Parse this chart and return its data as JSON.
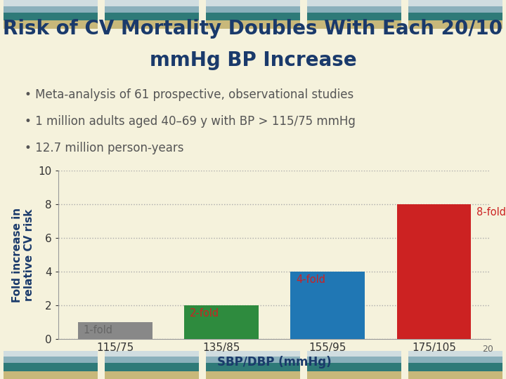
{
  "title_line1": "Risk of CV Mortality Doubles With Each 20/10",
  "title_line2": "mmHg BP Increase",
  "title_color": "#1a3a6b",
  "title_fontsize": 20,
  "bullets": [
    "Meta-analysis of 61 prospective, observational studies",
    "1 million adults aged 40–69 y with BP > 115/75 mmHg",
    "12.7 million person-years"
  ],
  "bullet_color": "#555555",
  "bullet_fontsize": 12,
  "categories": [
    "115/75",
    "135/85",
    "155/95",
    "175/105"
  ],
  "values": [
    1,
    2,
    4,
    8
  ],
  "bar_colors": [
    "#888888",
    "#2e8b3e",
    "#2077b4",
    "#cc2222"
  ],
  "bar_labels": [
    "1-fold",
    "2-fold",
    "4-fold",
    "8-fold"
  ],
  "bar_label_colors": [
    "#666666",
    "#cc2222",
    "#cc2222",
    "#cc2222"
  ],
  "xlabel": "SBP/DBP (mmHg)",
  "ylabel": "Fold increase in\nrelative CV risk",
  "xlabel_color": "#1a3a6b",
  "ylabel_color": "#1a3a6b",
  "xlabel_fontsize": 12,
  "ylabel_fontsize": 11,
  "ylim": [
    0,
    10
  ],
  "yticks": [
    0,
    2,
    4,
    6,
    8,
    10
  ],
  "grid_color": "#aaaaaa",
  "background_color": "#f5f2dc",
  "plot_bg_color": "#f5f2dc",
  "footnote": "20",
  "stripe_row1": [
    "#c8d8d8",
    "#c8d8d8",
    "#c8d8d8",
    "#c8d8d8",
    "#c8d8d8"
  ],
  "stripe_row2": [
    "#9ab8c0",
    "#9ab8c0",
    "#9ab8c0",
    "#9ab8c0",
    "#9ab8c0"
  ],
  "stripe_row3": [
    "#2e7a78",
    "#2e7a78",
    "#2e7a78",
    "#2e7a78",
    "#2e7a78"
  ],
  "stripe_row4": [
    "#c8b87a",
    "#c8b87a",
    "#c8b87a",
    "#c8b87a",
    "#c8b87a"
  ],
  "stripe_top_colors": [
    "#d0e0e0",
    "#b0c8d0",
    "#2e7a78",
    "#c8b87a"
  ],
  "header_n": 5
}
